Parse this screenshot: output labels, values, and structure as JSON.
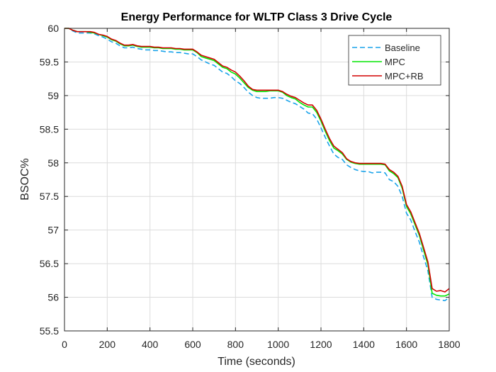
{
  "chart_data": {
    "type": "line",
    "title": "Energy Performance for WLTP Class 3 Drive Cycle",
    "xlabel": "Time (seconds)",
    "ylabel": "BSOC%",
    "xlim": [
      0,
      1800
    ],
    "ylim": [
      55.5,
      60
    ],
    "xticks": [
      "0",
      "200",
      "400",
      "600",
      "800",
      "1000",
      "1200",
      "1400",
      "1600",
      "1800"
    ],
    "yticks": [
      "55.5",
      "56",
      "56.5",
      "57",
      "57.5",
      "58",
      "58.5",
      "59",
      "59.5",
      "60"
    ],
    "grid": true,
    "legend_position": "top-right",
    "series": [
      {
        "name": "Baseline",
        "color": "#1aa3ea",
        "style": "dashed",
        "x": [
          0,
          20,
          40,
          60,
          80,
          100,
          120,
          140,
          160,
          180,
          200,
          220,
          240,
          260,
          280,
          300,
          320,
          340,
          360,
          380,
          400,
          420,
          440,
          460,
          480,
          500,
          520,
          540,
          560,
          580,
          600,
          620,
          640,
          660,
          680,
          700,
          720,
          740,
          760,
          780,
          800,
          820,
          840,
          860,
          880,
          900,
          920,
          940,
          960,
          980,
          1000,
          1020,
          1040,
          1060,
          1080,
          1100,
          1120,
          1140,
          1160,
          1180,
          1200,
          1220,
          1240,
          1260,
          1280,
          1300,
          1320,
          1340,
          1360,
          1380,
          1400,
          1420,
          1440,
          1460,
          1480,
          1500,
          1520,
          1540,
          1560,
          1580,
          1600,
          1620,
          1640,
          1660,
          1680,
          1700,
          1720,
          1740,
          1760,
          1780,
          1800
        ],
        "y": [
          60.0,
          60.0,
          59.96,
          59.93,
          59.93,
          59.93,
          59.93,
          59.92,
          59.89,
          59.87,
          59.84,
          59.8,
          59.78,
          59.74,
          59.71,
          59.71,
          59.72,
          59.7,
          59.69,
          59.68,
          59.68,
          59.67,
          59.67,
          59.66,
          59.65,
          59.65,
          59.64,
          59.64,
          59.63,
          59.62,
          59.62,
          59.58,
          59.53,
          59.5,
          59.47,
          59.45,
          59.4,
          59.35,
          59.33,
          59.28,
          59.22,
          59.18,
          59.12,
          59.05,
          59.0,
          58.97,
          58.96,
          58.96,
          58.96,
          58.97,
          58.97,
          58.96,
          58.93,
          58.9,
          58.88,
          58.84,
          58.8,
          58.74,
          58.73,
          58.65,
          58.52,
          58.38,
          58.25,
          58.13,
          58.08,
          58.05,
          57.97,
          57.93,
          57.9,
          57.88,
          57.87,
          57.87,
          57.85,
          57.86,
          57.86,
          57.85,
          57.75,
          57.72,
          57.65,
          57.5,
          57.25,
          57.15,
          56.98,
          56.82,
          56.6,
          56.4,
          56.0,
          55.97,
          55.96,
          55.95,
          56.0
        ]
      },
      {
        "name": "MPC",
        "color": "#00e600",
        "style": "solid",
        "x": [
          0,
          20,
          40,
          60,
          80,
          100,
          120,
          140,
          160,
          180,
          200,
          220,
          240,
          260,
          280,
          300,
          320,
          340,
          360,
          380,
          400,
          420,
          440,
          460,
          480,
          500,
          520,
          540,
          560,
          580,
          600,
          620,
          640,
          660,
          680,
          700,
          720,
          740,
          760,
          780,
          800,
          820,
          840,
          860,
          880,
          900,
          920,
          940,
          960,
          980,
          1000,
          1020,
          1040,
          1060,
          1080,
          1100,
          1120,
          1140,
          1160,
          1180,
          1200,
          1220,
          1240,
          1260,
          1280,
          1300,
          1320,
          1340,
          1360,
          1380,
          1400,
          1420,
          1440,
          1460,
          1480,
          1500,
          1520,
          1540,
          1560,
          1580,
          1600,
          1620,
          1640,
          1660,
          1680,
          1700,
          1720,
          1740,
          1760,
          1780,
          1800
        ],
        "y": [
          60.0,
          60.0,
          59.97,
          59.95,
          59.95,
          59.95,
          59.94,
          59.93,
          59.91,
          59.89,
          59.87,
          59.83,
          59.81,
          59.77,
          59.74,
          59.74,
          59.75,
          59.73,
          59.72,
          59.72,
          59.72,
          59.71,
          59.71,
          59.7,
          59.7,
          59.7,
          59.69,
          59.69,
          59.68,
          59.68,
          59.68,
          59.64,
          59.58,
          59.56,
          59.54,
          59.52,
          59.47,
          59.42,
          59.4,
          59.35,
          59.32,
          59.26,
          59.19,
          59.12,
          59.08,
          59.06,
          59.06,
          59.06,
          59.07,
          59.07,
          59.07,
          59.05,
          59.0,
          58.97,
          58.95,
          58.9,
          58.86,
          58.83,
          58.83,
          58.75,
          58.62,
          58.47,
          58.33,
          58.22,
          58.18,
          58.13,
          58.05,
          58.01,
          57.99,
          57.98,
          57.98,
          57.98,
          57.98,
          57.98,
          57.98,
          57.97,
          57.88,
          57.84,
          57.78,
          57.62,
          57.35,
          57.24,
          57.08,
          56.92,
          56.7,
          56.49,
          56.06,
          56.03,
          56.02,
          56.02,
          56.05
        ]
      },
      {
        "name": "MPC+RB",
        "color": "#d40000",
        "style": "solid",
        "x": [
          0,
          20,
          40,
          60,
          80,
          100,
          120,
          140,
          160,
          180,
          200,
          220,
          240,
          260,
          280,
          300,
          320,
          340,
          360,
          380,
          400,
          420,
          440,
          460,
          480,
          500,
          520,
          540,
          560,
          580,
          600,
          620,
          640,
          660,
          680,
          700,
          720,
          740,
          760,
          780,
          800,
          820,
          840,
          860,
          880,
          900,
          920,
          940,
          960,
          980,
          1000,
          1020,
          1040,
          1060,
          1080,
          1100,
          1120,
          1140,
          1160,
          1180,
          1200,
          1220,
          1240,
          1260,
          1280,
          1300,
          1320,
          1340,
          1360,
          1380,
          1400,
          1420,
          1440,
          1460,
          1480,
          1500,
          1520,
          1540,
          1560,
          1580,
          1600,
          1620,
          1640,
          1660,
          1680,
          1700,
          1720,
          1740,
          1760,
          1780,
          1800
        ],
        "y": [
          60.0,
          60.0,
          59.97,
          59.95,
          59.95,
          59.95,
          59.95,
          59.94,
          59.91,
          59.9,
          59.88,
          59.84,
          59.82,
          59.78,
          59.75,
          59.75,
          59.76,
          59.74,
          59.73,
          59.73,
          59.73,
          59.72,
          59.72,
          59.71,
          59.71,
          59.71,
          59.7,
          59.7,
          59.69,
          59.69,
          59.69,
          59.65,
          59.6,
          59.58,
          59.56,
          59.54,
          59.49,
          59.44,
          59.42,
          59.38,
          59.35,
          59.29,
          59.22,
          59.14,
          59.09,
          59.08,
          59.08,
          59.08,
          59.08,
          59.08,
          59.08,
          59.06,
          59.02,
          58.99,
          58.97,
          58.93,
          58.89,
          58.86,
          58.86,
          58.78,
          58.65,
          58.5,
          58.36,
          58.25,
          58.2,
          58.15,
          58.06,
          58.02,
          58.0,
          57.99,
          57.99,
          57.99,
          57.99,
          57.99,
          57.99,
          57.98,
          57.9,
          57.86,
          57.8,
          57.65,
          57.38,
          57.27,
          57.11,
          56.95,
          56.74,
          56.53,
          56.13,
          56.09,
          56.1,
          56.08,
          56.13
        ]
      }
    ]
  }
}
